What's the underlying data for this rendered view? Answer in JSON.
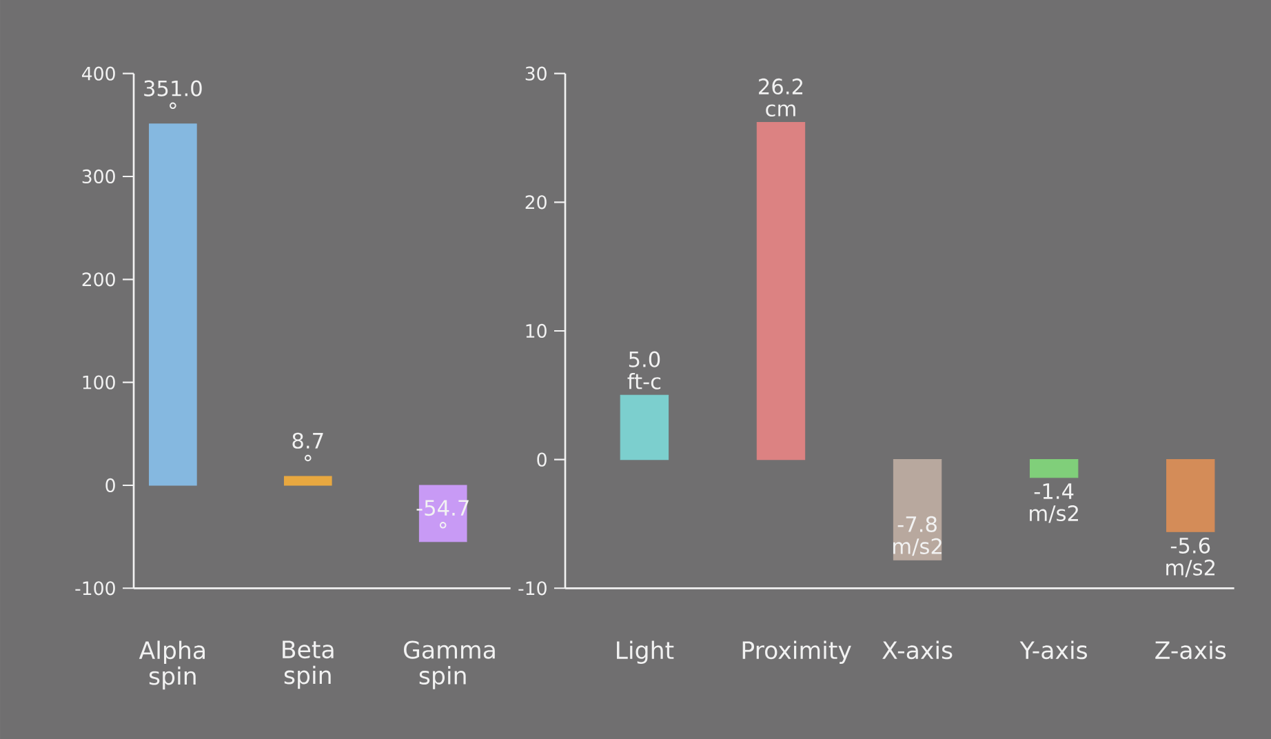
{
  "chart_data": [
    {
      "type": "bar",
      "categories": [
        "Alpha spin",
        "Beta spin",
        "Gamma spin"
      ],
      "values": [
        351.0,
        8.7,
        -54.7
      ],
      "colors": [
        "#85b8e0",
        "#e8a840",
        "#c89af5"
      ],
      "value_labels": [
        "351.0 °",
        "8.7 °",
        "-54.7 °"
      ],
      "ylim": [
        -100,
        400
      ],
      "yticks": [
        -100,
        0,
        100,
        200,
        300,
        400
      ]
    },
    {
      "type": "bar",
      "categories": [
        "Light",
        "Proximity",
        "X-axis",
        "Y-axis",
        "Z-axis"
      ],
      "values": [
        5.0,
        26.2,
        -7.8,
        -1.4,
        -5.6
      ],
      "colors": [
        "#7ccfce",
        "#dc8282",
        "#b8a89e",
        "#80cf7a",
        "#d48c58"
      ],
      "value_labels": [
        "5.0 ft-c",
        "26.2 cm",
        "-7.8 m/s2",
        "-1.4 m/s2",
        "-5.6 m/s2"
      ],
      "ylim": [
        -10,
        30
      ],
      "yticks": [
        -10,
        0,
        10,
        20,
        30
      ]
    }
  ]
}
